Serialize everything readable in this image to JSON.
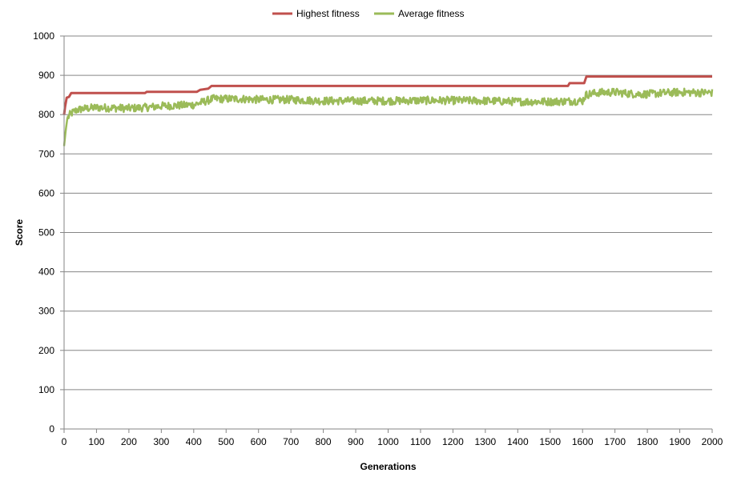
{
  "chart_data": {
    "type": "line",
    "title": "",
    "xlabel": "Generations",
    "ylabel": "Score",
    "xlim": [
      0,
      2000
    ],
    "ylim": [
      0,
      1000
    ],
    "x_ticks": [
      0,
      100,
      200,
      300,
      400,
      500,
      600,
      700,
      800,
      900,
      1000,
      1100,
      1200,
      1300,
      1400,
      1500,
      1600,
      1700,
      1800,
      1900,
      2000
    ],
    "y_ticks": [
      0,
      100,
      200,
      300,
      400,
      500,
      600,
      700,
      800,
      900,
      1000
    ],
    "grid": "horizontal",
    "legend_position": "top",
    "series": [
      {
        "name": "Highest fitness",
        "color": "#c0504d",
        "style": "step",
        "x": [
          0,
          3,
          8,
          15,
          22,
          250,
          255,
          410,
          420,
          445,
          455,
          1555,
          1560,
          1605,
          1612,
          2000
        ],
        "y": [
          800,
          820,
          843,
          845,
          855,
          855,
          858,
          858,
          863,
          866,
          873,
          873,
          880,
          880,
          897,
          897
        ]
      },
      {
        "name": "Average fitness",
        "color": "#9bbb59",
        "style": "noisy",
        "x": [
          0,
          5,
          10,
          20,
          40,
          60,
          100,
          150,
          200,
          250,
          280,
          300,
          350,
          400,
          420,
          440,
          450,
          460,
          500,
          550,
          600,
          700,
          800,
          900,
          1000,
          1100,
          1200,
          1300,
          1400,
          1500,
          1550,
          1600,
          1610,
          1620,
          1650,
          1700,
          1750,
          1800,
          1850,
          1900,
          1950,
          2000
        ],
        "y": [
          720,
          760,
          790,
          802,
          812,
          815,
          818,
          817,
          816,
          818,
          820,
          822,
          823,
          825,
          830,
          835,
          838,
          840,
          840,
          840,
          838,
          838,
          835,
          835,
          835,
          836,
          836,
          835,
          833,
          833,
          834,
          835,
          850,
          852,
          856,
          857,
          853,
          852,
          855,
          857,
          856,
          856
        ],
        "noise_amplitude": 10
      }
    ]
  }
}
